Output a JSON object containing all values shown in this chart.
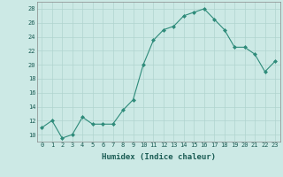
{
  "xlabel": "Humidex (Indice chaleur)",
  "x": [
    0,
    1,
    2,
    3,
    4,
    5,
    6,
    7,
    8,
    9,
    10,
    11,
    12,
    13,
    14,
    15,
    16,
    17,
    18,
    19,
    20,
    21,
    22,
    23
  ],
  "y": [
    11,
    12,
    9.5,
    10,
    12.5,
    11.5,
    11.5,
    11.5,
    13.5,
    15,
    20,
    23.5,
    25,
    25.5,
    27,
    27.5,
    28,
    26.5,
    25,
    22.5,
    22.5,
    21.5,
    19,
    20.5
  ],
  "line_color": "#2e8b7a",
  "marker": "D",
  "markersize": 2.0,
  "linewidth": 0.8,
  "bg_color": "#cce9e5",
  "grid_color": "#b0d4cf",
  "xlim": [
    -0.5,
    23.5
  ],
  "ylim": [
    9,
    29
  ],
  "yticks": [
    10,
    12,
    14,
    16,
    18,
    20,
    22,
    24,
    26,
    28
  ],
  "xticks": [
    0,
    1,
    2,
    3,
    4,
    5,
    6,
    7,
    8,
    9,
    10,
    11,
    12,
    13,
    14,
    15,
    16,
    17,
    18,
    19,
    20,
    21,
    22,
    23
  ],
  "xlabel_fontsize": 6.5,
  "tick_fontsize": 5.0
}
